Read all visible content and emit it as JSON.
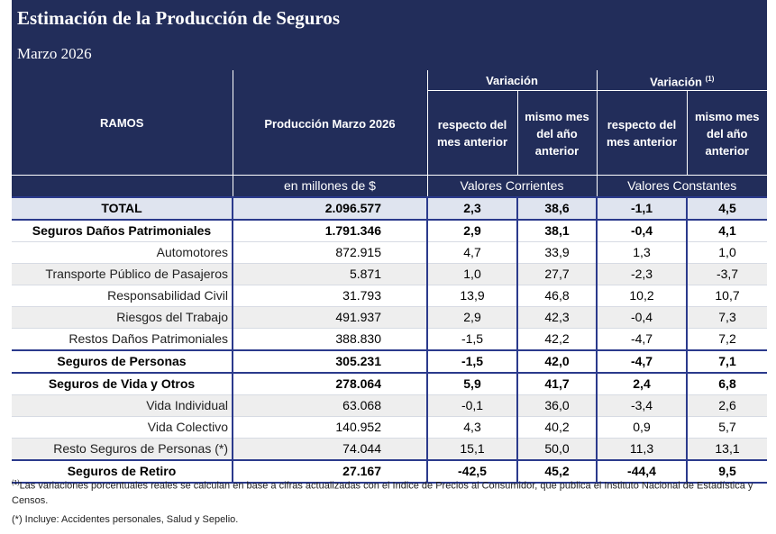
{
  "header": {
    "title": "Estimación de la Producción de Seguros",
    "subtitle": "Marzo 2026"
  },
  "columns": {
    "ramos": "RAMOS",
    "produccion": "Producción Marzo 2026",
    "produccion_unit": "en millones de $",
    "variacion_corrientes": "Variación",
    "variacion_constantes": "Variación",
    "variacion_constantes_sup": "(1)",
    "mes_anterior": "respecto del mes anterior",
    "mismo_mes": "mismo mes del año anterior",
    "valores_corrientes": "Valores Corrientes",
    "valores_constantes": "Valores Constantes"
  },
  "rows": [
    {
      "ramo": "TOTAL",
      "produccion": "2.096.577",
      "var_mes": "2,3",
      "var_anio": "38,6",
      "cte_mes": "-1,1",
      "cte_anio": "4,5"
    },
    {
      "ramo": "Seguros Daños Patrimoniales",
      "produccion": "1.791.346",
      "var_mes": "2,9",
      "var_anio": "38,1",
      "cte_mes": "-0,4",
      "cte_anio": "4,1"
    },
    {
      "ramo": "Automotores",
      "produccion": "872.915",
      "var_mes": "4,7",
      "var_anio": "33,9",
      "cte_mes": "1,3",
      "cte_anio": "1,0"
    },
    {
      "ramo": "Transporte Público de Pasajeros",
      "produccion": "5.871",
      "var_mes": "1,0",
      "var_anio": "27,7",
      "cte_mes": "-2,3",
      "cte_anio": "-3,7"
    },
    {
      "ramo": "Responsabilidad Civil",
      "produccion": "31.793",
      "var_mes": "13,9",
      "var_anio": "46,8",
      "cte_mes": "10,2",
      "cte_anio": "10,7"
    },
    {
      "ramo": "Riesgos del Trabajo",
      "produccion": "491.937",
      "var_mes": "2,9",
      "var_anio": "42,3",
      "cte_mes": "-0,4",
      "cte_anio": "7,3"
    },
    {
      "ramo": "Restos Daños Patrimoniales",
      "produccion": "388.830",
      "var_mes": "-1,5",
      "var_anio": "42,2",
      "cte_mes": "-4,7",
      "cte_anio": "7,2"
    },
    {
      "ramo": "Seguros de Personas",
      "produccion": "305.231",
      "var_mes": "-1,5",
      "var_anio": "42,0",
      "cte_mes": "-4,7",
      "cte_anio": "7,1"
    },
    {
      "ramo": "Seguros de Vida y Otros",
      "produccion": "278.064",
      "var_mes": "5,9",
      "var_anio": "41,7",
      "cte_mes": "2,4",
      "cte_anio": "6,8"
    },
    {
      "ramo": "Vida Individual",
      "produccion": "63.068",
      "var_mes": "-0,1",
      "var_anio": "36,0",
      "cte_mes": "-3,4",
      "cte_anio": "2,6"
    },
    {
      "ramo": "Vida Colectivo",
      "produccion": "140.952",
      "var_mes": "4,3",
      "var_anio": "40,2",
      "cte_mes": "0,9",
      "cte_anio": "5,7"
    },
    {
      "ramo": "Resto Seguros de Personas (*)",
      "produccion": "74.044",
      "var_mes": "15,1",
      "var_anio": "50,0",
      "cte_mes": "11,3",
      "cte_anio": "13,1"
    },
    {
      "ramo": "Seguros de Retiro",
      "produccion": "27.167",
      "var_mes": "-42,5",
      "var_anio": "45,2",
      "cte_mes": "-44,4",
      "cte_anio": "9,5"
    }
  ],
  "notes": {
    "note1_mark": "(1)",
    "note1": "Las variaciones porcentuales reales se calculan en base a cifras actualizadas con el Indice de Precios al Consumidor, que publica el Instituto Nacional de Estadística y Censos.",
    "note2": "(*) Incluye: Accidentes personales, Salud y Sepelio."
  }
}
